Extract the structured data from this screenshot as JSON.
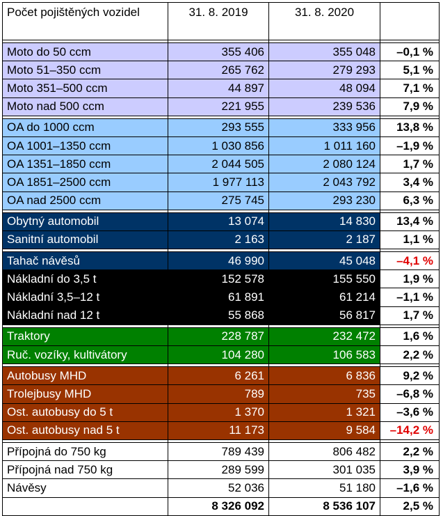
{
  "header": {
    "title": "Počet pojištěných vozidel",
    "col_2019": "31. 8. 2019",
    "col_2020": "31. 8. 2020",
    "col_change": ""
  },
  "groups": [
    {
      "key": "moto",
      "color": "#ccccff",
      "rows": [
        {
          "label": "Moto do 50 ccm",
          "v2019": "355 406",
          "v2020": "355 048",
          "change": "–0,1 %"
        },
        {
          "label": "Moto 51–350 ccm",
          "v2019": "265 762",
          "v2020": "279 293",
          "change": "5,1 %"
        },
        {
          "label": "Moto 351–500 ccm",
          "v2019": "44 897",
          "v2020": "48 094",
          "change": "7,1 %"
        },
        {
          "label": "Moto nad 500 ccm",
          "v2019": "221 955",
          "v2020": "239 536",
          "change": "7,9 %"
        }
      ]
    },
    {
      "key": "oa",
      "color": "#99ccff",
      "rows": [
        {
          "label": "OA do 1000 ccm",
          "v2019": "293 555",
          "v2020": "333 956",
          "change": "13,8 %"
        },
        {
          "label": "OA 1001–1350 ccm",
          "v2019": "1 030 856",
          "v2020": "1 011 160",
          "change": "–1,9 %"
        },
        {
          "label": "OA 1351–1850 ccm",
          "v2019": "2 044 505",
          "v2020": "2 080 124",
          "change": "1,7 %"
        },
        {
          "label": "OA 1851–2500 ccm",
          "v2019": "1 977 113",
          "v2020": "2 043 792",
          "change": "3,4 %"
        },
        {
          "label": "OA nad 2500 ccm",
          "v2019": "275 745",
          "v2020": "293 230",
          "change": "6,3 %"
        }
      ]
    },
    {
      "key": "special",
      "color": "#003366",
      "rows": [
        {
          "label": "Obytný automobil",
          "v2019": "13 074",
          "v2020": "14 830",
          "change": "13,4 %"
        },
        {
          "label": "Sanitní automobil",
          "v2019": "2 163",
          "v2020": "2 187",
          "change": "1,1 %"
        }
      ]
    },
    {
      "key": "tahac",
      "color": "#003366",
      "rows": [
        {
          "label": "Tahač návěsů",
          "v2019": "46 990",
          "v2020": "45 048",
          "change": "–4,1 %",
          "highlight": true
        }
      ]
    },
    {
      "key": "nakladni",
      "color": "#000000",
      "rows": [
        {
          "label": "Nákladní do 3,5 t",
          "v2019": "152 578",
          "v2020": "155 550",
          "change": "1,9 %"
        },
        {
          "label": "Nákladní 3,5–12 t",
          "v2019": "61 891",
          "v2020": "61 214",
          "change": "–1,1 %"
        },
        {
          "label": "Nákladní nad 12 t",
          "v2019": "55 868",
          "v2020": "56 817",
          "change": "1,7 %"
        }
      ]
    },
    {
      "key": "traktory",
      "color": "#008000",
      "rows": [
        {
          "label": "Traktory",
          "v2019": "228 787",
          "v2020": "232 472",
          "change": "1,6 %"
        },
        {
          "label": "Ruč. vozíky, kultivátory",
          "v2019": "104 280",
          "v2020": "106 583",
          "change": "2,2 %"
        }
      ]
    },
    {
      "key": "autobusy",
      "color": "#993300",
      "rows": [
        {
          "label": "Autobusy MHD",
          "v2019": "6 261",
          "v2020": "6 836",
          "change": "9,2 %"
        },
        {
          "label": "Trolejbusy MHD",
          "v2019": "789",
          "v2020": "735",
          "change": "–6,8 %"
        },
        {
          "label": "Ost. autobusy do 5 t",
          "v2019": "1 370",
          "v2020": "1 321",
          "change": "–3,6 %"
        },
        {
          "label": "Ost. autobusy nad 5 t",
          "v2019": "11 173",
          "v2020": "9 584",
          "change": "–14,2 %",
          "highlight": true
        }
      ]
    },
    {
      "key": "pripojna",
      "color": "#ffffff",
      "rows": [
        {
          "label": "Přípojná do 750 kg",
          "v2019": "789 439",
          "v2020": "806 482",
          "change": "2,2 %"
        },
        {
          "label": "Přípojná nad 750 kg",
          "v2019": "289 599",
          "v2020": "301 035",
          "change": "3,9 %"
        },
        {
          "label": "Návěsy",
          "v2019": "52 036",
          "v2020": "51 180",
          "change": "–1,6 %"
        }
      ]
    }
  ],
  "total": {
    "label": "",
    "v2019": "8 326 092",
    "v2020": "8 536 107",
    "change": "2,5 %"
  },
  "colors": {
    "negative_highlight": "#e00000"
  }
}
